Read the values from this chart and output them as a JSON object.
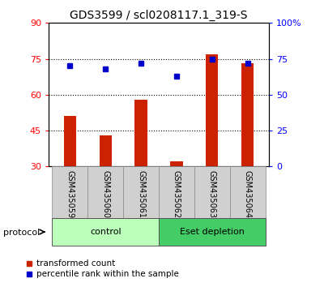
{
  "title": "GDS3599 / scl0208117.1_319-S",
  "samples": [
    "GSM435059",
    "GSM435060",
    "GSM435061",
    "GSM435062",
    "GSM435063",
    "GSM435064"
  ],
  "red_values": [
    51,
    43,
    58,
    32,
    77,
    73
  ],
  "blue_values": [
    70,
    68,
    72,
    63,
    75,
    72
  ],
  "left_ylim": [
    30,
    90
  ],
  "right_ylim": [
    0,
    100
  ],
  "left_yticks": [
    30,
    45,
    60,
    75,
    90
  ],
  "right_yticks": [
    0,
    25,
    50,
    75,
    100
  ],
  "right_yticklabels": [
    "0",
    "25",
    "50",
    "75",
    "100%"
  ],
  "hlines": [
    45,
    60,
    75
  ],
  "bar_color": "#cc2200",
  "square_color": "#0000cc",
  "groups": [
    {
      "label": "control",
      "start": 0,
      "end": 2,
      "color": "#bbffbb"
    },
    {
      "label": "Eset depletion",
      "start": 3,
      "end": 5,
      "color": "#44cc66"
    }
  ],
  "protocol_label": "protocol",
  "legend_red": "transformed count",
  "legend_blue": "percentile rank within the sample",
  "title_fontsize": 10,
  "tick_fontsize": 8,
  "sample_fontsize": 7
}
